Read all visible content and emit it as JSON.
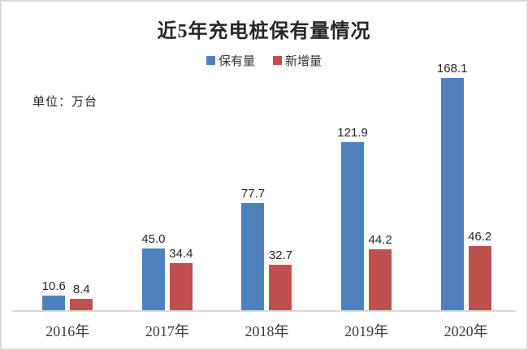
{
  "chart_data": {
    "type": "bar",
    "title": "近5年充电桩保有量情况",
    "unit_label": "单位：万台",
    "categories": [
      "2016年",
      "2017年",
      "2018年",
      "2019年",
      "2020年"
    ],
    "series": [
      {
        "name": "保有量",
        "color": "#4f81bd",
        "values": [
          10.6,
          45.0,
          77.7,
          121.9,
          168.1
        ]
      },
      {
        "name": "新增量",
        "color": "#c0504d",
        "values": [
          8.4,
          34.4,
          32.7,
          44.2,
          46.2
        ]
      }
    ],
    "ylim": [
      0,
      200
    ],
    "value_labels": true,
    "value_label_decimals": 1,
    "legend_position": "top",
    "grid": false,
    "axis_color": "#d9d9d9",
    "border_color": "#dadada"
  }
}
